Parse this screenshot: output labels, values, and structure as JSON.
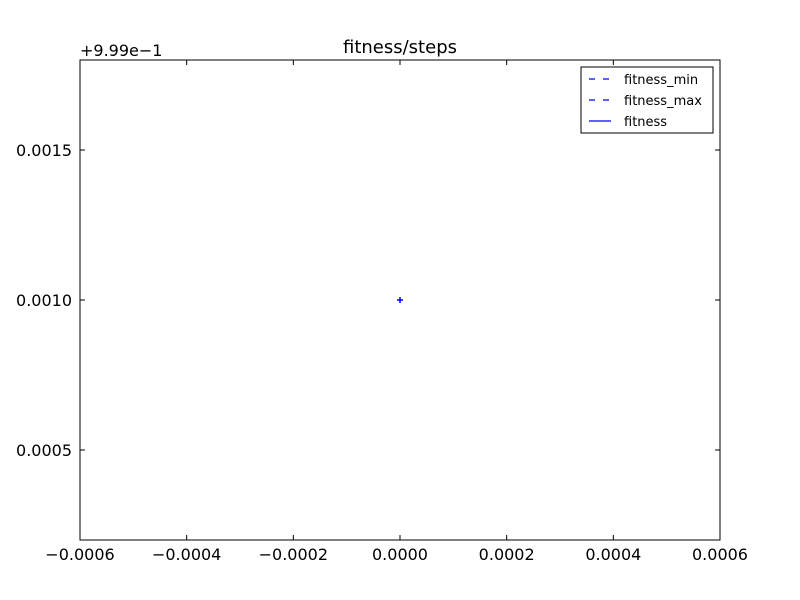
{
  "chart_data": {
    "type": "line",
    "title": "fitness/steps",
    "xlabel": "",
    "ylabel": "",
    "y_offset_label": "+9.99e−1",
    "xlim": [
      -0.0006,
      0.0006
    ],
    "ylim": [
      0.0002,
      0.0018
    ],
    "x_ticks": [
      -0.0006,
      -0.0004,
      -0.0002,
      0.0,
      0.0002,
      0.0004,
      0.0006
    ],
    "x_tick_labels": [
      "−0.0006",
      "−0.0004",
      "−0.0002",
      "0.0000",
      "0.0002",
      "0.0004",
      "0.0006"
    ],
    "y_ticks": [
      0.0005,
      0.001,
      0.0015
    ],
    "y_tick_labels": [
      "0.0005",
      "0.0010",
      "0.0015"
    ],
    "grid": false,
    "legend_position": "top-right",
    "series": [
      {
        "name": "fitness_min",
        "style": "dashed",
        "color": "#0000ff",
        "x": [
          0.0
        ],
        "y": [
          0.001
        ]
      },
      {
        "name": "fitness_max",
        "style": "dashed",
        "color": "#0000ff",
        "x": [
          0.0
        ],
        "y": [
          0.001
        ]
      },
      {
        "name": "fitness",
        "style": "solid",
        "color": "#0000ff",
        "x": [
          0.0
        ],
        "y": [
          0.001
        ]
      }
    ]
  }
}
